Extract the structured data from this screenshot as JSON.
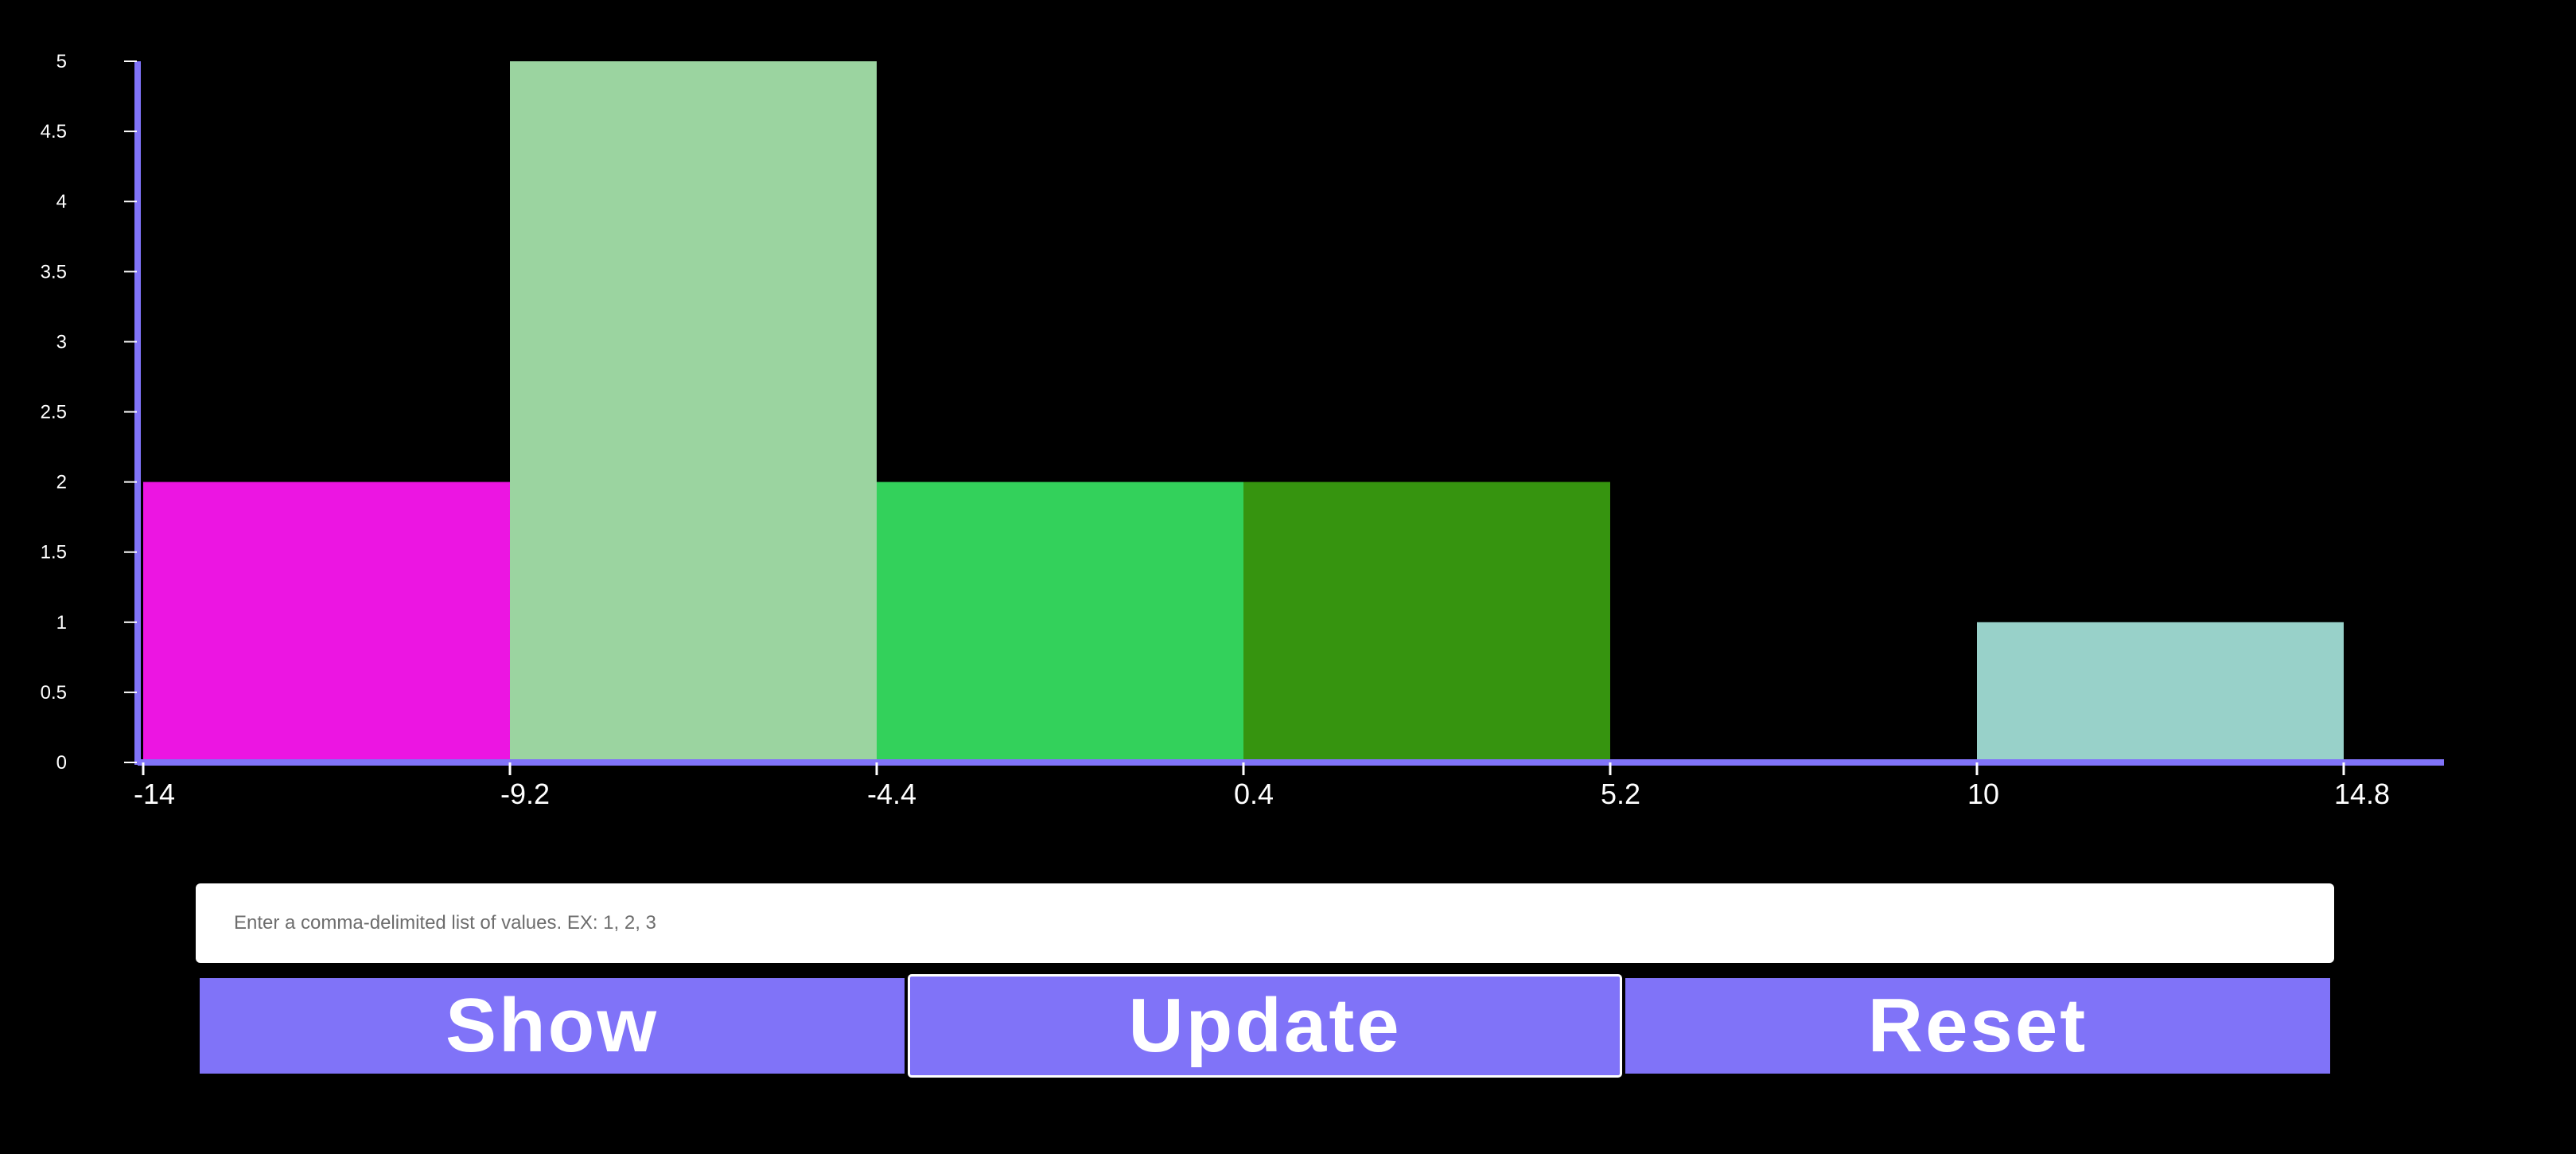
{
  "chart_data": {
    "type": "bar",
    "title": "",
    "xlabel": "",
    "ylabel": "",
    "bin_edges": [
      -14,
      -9.2,
      -4.4,
      0.4,
      5.2,
      10,
      14.8
    ],
    "x_tick_labels": [
      "-14",
      "-9.2",
      "-4.4",
      "0.4",
      "5.2",
      "10",
      "14.8"
    ],
    "values": [
      2,
      5,
      2,
      2,
      0,
      1
    ],
    "bar_colors": [
      "#ec15e2",
      "#9bd4a0",
      "#33d15b",
      "#36940f",
      "#000000",
      "#98d1c9"
    ],
    "ylim": [
      0,
      5
    ],
    "y_tick_labels": [
      "0",
      "0.5",
      "1",
      "1.5",
      "2",
      "2.5",
      "3",
      "3.5",
      "4",
      "4.5",
      "5"
    ],
    "axis_color": "#8073f8",
    "grid": false
  },
  "input": {
    "placeholder": "Enter a comma-delimited list of values. EX: 1, 2, 3",
    "value": ""
  },
  "buttons": {
    "show": "Show",
    "update": "Update",
    "reset": "Reset"
  },
  "colors": {
    "background": "#000000",
    "accent": "#8073f8",
    "button_text": "#ffffff"
  }
}
